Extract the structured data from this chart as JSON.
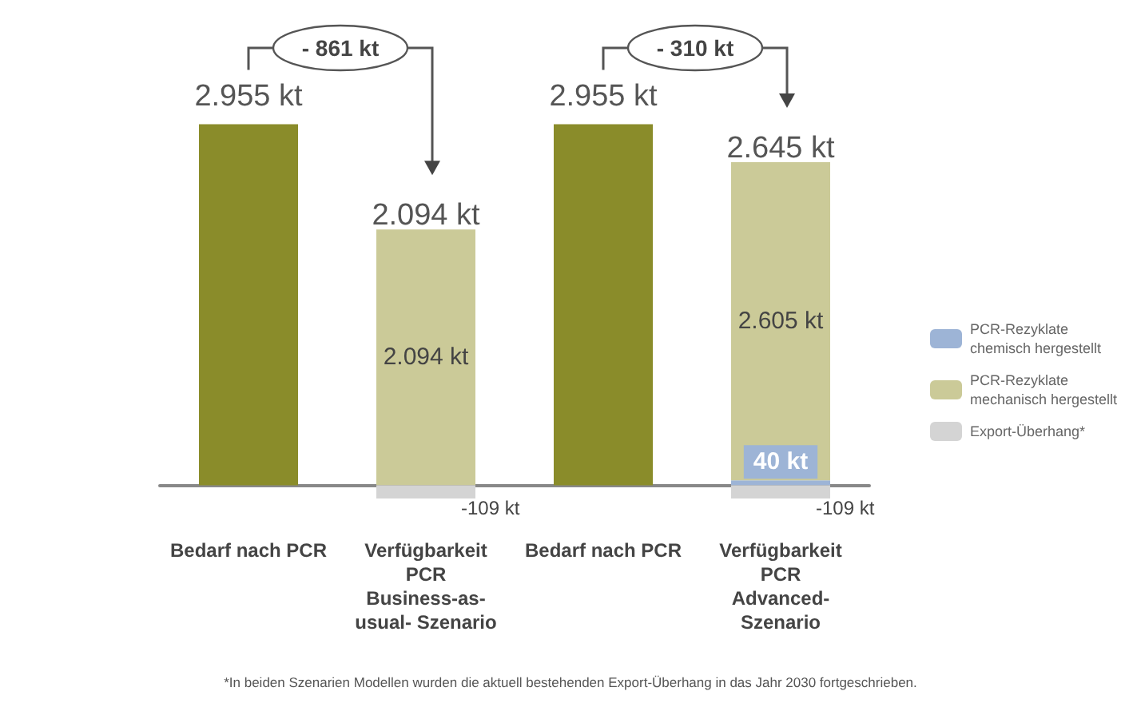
{
  "chart_data": {
    "type": "bar",
    "stacked": true,
    "categories": [
      "Bedarf nach PCR",
      "Verfügbarkeit\nPCR\nBusiness-as-\nusual- Szenario",
      "Bedarf nach PCR",
      "Verfügbarkeit\nPCR\nAdvanced-\nSzenario"
    ],
    "series": [
      {
        "color": "#8a8c2a",
        "values": [
          2955,
          null,
          2955,
          null
        ],
        "value_labels": [
          "2.955 kt",
          null,
          "2.955 kt",
          null
        ]
      },
      {
        "name": "PCR-Rezyklate chemisch hergestellt",
        "color": "#9db4d6",
        "values": [
          null,
          null,
          null,
          40
        ],
        "value_labels": [
          null,
          null,
          null,
          "40 kt"
        ]
      },
      {
        "name": "PCR-Rezyklate mechanisch hergestellt",
        "color": "#cbca98",
        "values": [
          null,
          2094,
          null,
          2605
        ],
        "value_labels": [
          null,
          "2.094 kt",
          null,
          "2.605 kt"
        ]
      },
      {
        "name": "Export-Überhang*",
        "color": "#d4d4d4",
        "values": [
          null,
          -109,
          null,
          -109
        ],
        "value_labels": [
          null,
          "-109 kt",
          null,
          "-109 kt"
        ]
      }
    ],
    "annotations": [
      "2.094 kt",
      "2.645 kt",
      "- 861 kt",
      "- 310 kt",
      "*In beiden Szenarien Modellen wurden die aktuell bestehenden Export-Überhang in das Jahr 2030 fortgeschrieben."
    ],
    "legend": "right",
    "grid": false,
    "tick_labels": "x"
  }
}
